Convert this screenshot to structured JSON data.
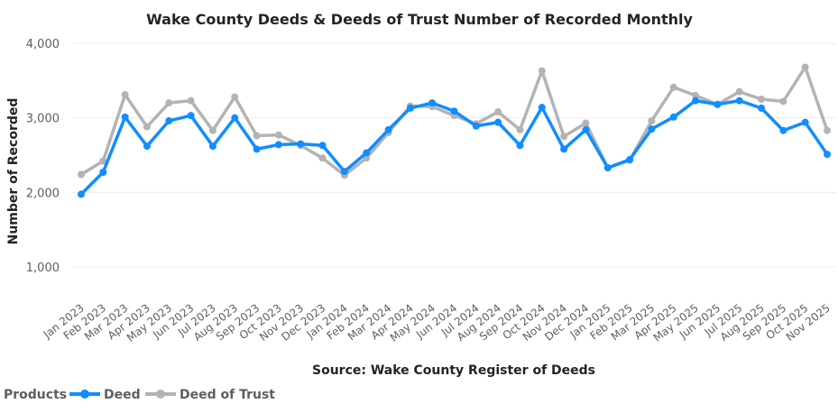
{
  "chart_data": {
    "type": "line",
    "title": "Wake County Deeds & Deeds of Trust Number of Recorded Monthly",
    "xlabel": "Source: Wake County Register of Deeds",
    "ylabel": "Number of Recorded",
    "ylim": [
      600,
      4100
    ],
    "yticks": [
      1000,
      2000,
      3000,
      4000
    ],
    "ytick_labels": [
      "1,000",
      "2,000",
      "3,000",
      "4,000"
    ],
    "grid": true,
    "legend": {
      "title": "Products",
      "position": "bottom-left"
    },
    "categories": [
      "Jan 2023",
      "Feb 2023",
      "Mar 2023",
      "Apr 2023",
      "May 2023",
      "Jun 2023",
      "Jul 2023",
      "Aug 2023",
      "Sep 2023",
      "Oct 2023",
      "Nov 2023",
      "Dec 2023",
      "Jan 2024",
      "Feb 2024",
      "Mar 2024",
      "Apr 2024",
      "May 2024",
      "Jun 2024",
      "Jul 2024",
      "Aug 2024",
      "Sep 2024",
      "Oct 2024",
      "Nov 2024",
      "Dec 2024",
      "Jan 2025",
      "Feb 2025",
      "Mar 2025",
      "Apr 2025",
      "May 2025",
      "Jun 2025",
      "Jul 2025",
      "Aug 2025",
      "Sep 2025",
      "Oct 2025",
      "Nov 2025"
    ],
    "series": [
      {
        "name": "Deed",
        "color": "#118DFF",
        "values": [
          1975,
          2270,
          3010,
          2620,
          2960,
          3030,
          2620,
          3000,
          2580,
          2640,
          2650,
          2630,
          2280,
          2530,
          2840,
          3130,
          3200,
          3090,
          2890,
          2940,
          2630,
          3140,
          2580,
          2840,
          2330,
          2440,
          2850,
          3010,
          3230,
          3180,
          3230,
          3130,
          2830,
          2940,
          2510
        ]
      },
      {
        "name": "Deed of Trust",
        "color": "#B3B3B3",
        "values": [
          2240,
          2420,
          3310,
          2880,
          3200,
          3230,
          2830,
          3280,
          2760,
          2770,
          2630,
          2460,
          2230,
          2460,
          2800,
          3160,
          3150,
          3030,
          2920,
          3080,
          2840,
          3630,
          2750,
          2930,
          2330,
          2430,
          2960,
          3410,
          3300,
          3180,
          3350,
          3250,
          3220,
          3680,
          2830
        ]
      }
    ]
  }
}
